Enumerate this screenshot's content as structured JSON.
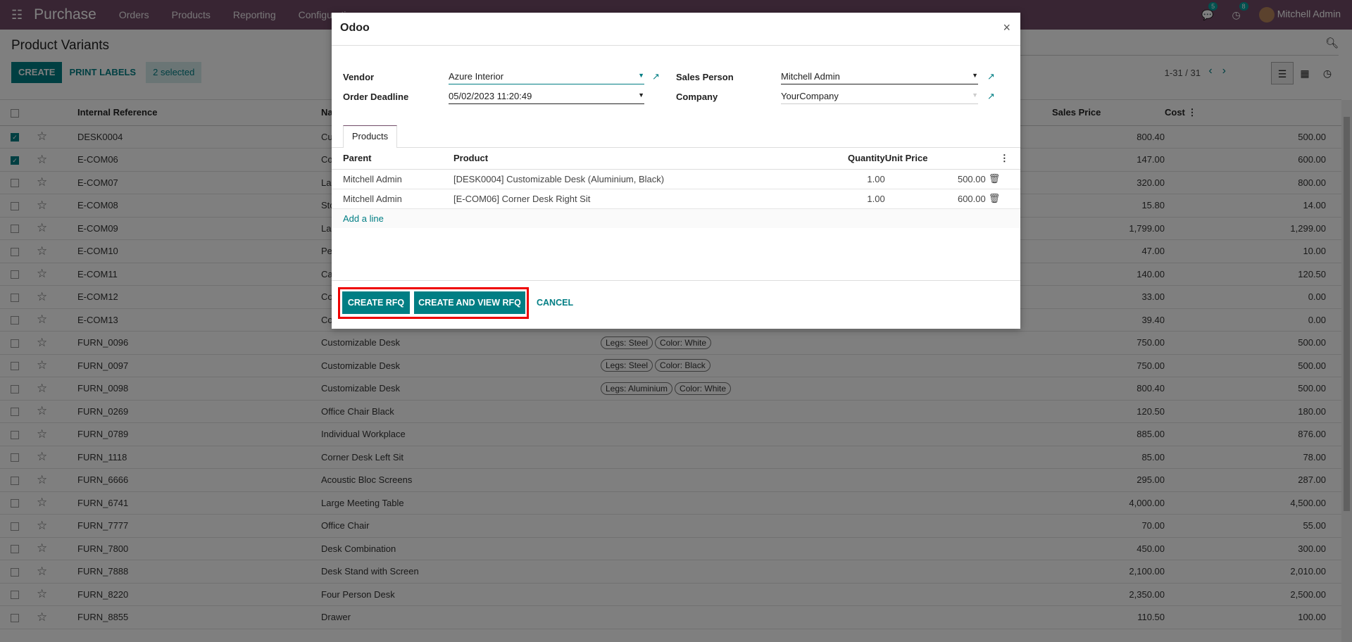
{
  "navbar": {
    "app": "Purchase",
    "menus": [
      "Orders",
      "Products",
      "Reporting",
      "Configuration"
    ],
    "messages_count": "5",
    "activities_count": "8",
    "user": "Mitchell Admin",
    "color": "#714B67"
  },
  "control": {
    "title": "Product Variants",
    "create": "CREATE",
    "print_labels": "PRINT LABELS",
    "selected": "2 selected",
    "pager": "1-31 / 31"
  },
  "list": {
    "columns": [
      "Internal Reference",
      "Na",
      "Sales Price",
      "Cost"
    ],
    "rows": [
      {
        "ref": "DESK0004",
        "name": "Cu",
        "tags": [],
        "price": "800.40",
        "cost": "500.00",
        "checked": true
      },
      {
        "ref": "E-COM06",
        "name": "Co",
        "tags": [],
        "price": "147.00",
        "cost": "600.00",
        "checked": true
      },
      {
        "ref": "E-COM07",
        "name": "La",
        "tags": [],
        "price": "320.00",
        "cost": "800.00"
      },
      {
        "ref": "E-COM08",
        "name": "Sto",
        "tags": [],
        "price": "15.80",
        "cost": "14.00"
      },
      {
        "ref": "E-COM09",
        "name": "La",
        "tags": [],
        "price": "1,799.00",
        "cost": "1,299.00"
      },
      {
        "ref": "E-COM10",
        "name": "Pe",
        "tags": [],
        "price": "47.00",
        "cost": "10.00"
      },
      {
        "ref": "E-COM11",
        "name": "Ca",
        "tags": [],
        "price": "140.00",
        "cost": "120.50"
      },
      {
        "ref": "E-COM12",
        "name": "Co",
        "tags": [],
        "price": "33.00",
        "cost": "0.00"
      },
      {
        "ref": "E-COM13",
        "name": "Co",
        "tags": [],
        "price": "39.40",
        "cost": "0.00"
      },
      {
        "ref": "FURN_0096",
        "name": "Customizable Desk",
        "tags": [
          "Legs: Steel",
          "Color: White"
        ],
        "price": "750.00",
        "cost": "500.00"
      },
      {
        "ref": "FURN_0097",
        "name": "Customizable Desk",
        "tags": [
          "Legs: Steel",
          "Color: Black"
        ],
        "price": "750.00",
        "cost": "500.00"
      },
      {
        "ref": "FURN_0098",
        "name": "Customizable Desk",
        "tags": [
          "Legs: Aluminium",
          "Color: White"
        ],
        "price": "800.40",
        "cost": "500.00"
      },
      {
        "ref": "FURN_0269",
        "name": "Office Chair Black",
        "tags": [],
        "price": "120.50",
        "cost": "180.00"
      },
      {
        "ref": "FURN_0789",
        "name": "Individual Workplace",
        "tags": [],
        "price": "885.00",
        "cost": "876.00"
      },
      {
        "ref": "FURN_1118",
        "name": "Corner Desk Left Sit",
        "tags": [],
        "price": "85.00",
        "cost": "78.00"
      },
      {
        "ref": "FURN_6666",
        "name": "Acoustic Bloc Screens",
        "tags": [],
        "price": "295.00",
        "cost": "287.00"
      },
      {
        "ref": "FURN_6741",
        "name": "Large Meeting Table",
        "tags": [],
        "price": "4,000.00",
        "cost": "4,500.00"
      },
      {
        "ref": "FURN_7777",
        "name": "Office Chair",
        "tags": [],
        "price": "70.00",
        "cost": "55.00"
      },
      {
        "ref": "FURN_7800",
        "name": "Desk Combination",
        "tags": [],
        "price": "450.00",
        "cost": "300.00"
      },
      {
        "ref": "FURN_7888",
        "name": "Desk Stand with Screen",
        "tags": [],
        "price": "2,100.00",
        "cost": "2,010.00"
      },
      {
        "ref": "FURN_8220",
        "name": "Four Person Desk",
        "tags": [],
        "price": "2,350.00",
        "cost": "2,500.00"
      },
      {
        "ref": "FURN_8855",
        "name": "Drawer",
        "tags": [],
        "price": "110.50",
        "cost": "100.00"
      }
    ]
  },
  "modal": {
    "title": "Odoo",
    "vendor_label": "Vendor",
    "vendor": "Azure Interior",
    "deadline_label": "Order Deadline",
    "deadline": "05/02/2023 11:20:49",
    "salesperson_label": "Sales Person",
    "salesperson": "Mitchell Admin",
    "company_label": "Company",
    "company": "YourCompany",
    "tab": "Products",
    "columns": [
      "Parent",
      "Product",
      "Quantity",
      "Unit Price"
    ],
    "lines": [
      {
        "parent": "Mitchell Admin",
        "product": "[DESK0004] Customizable Desk (Aluminium, Black)",
        "qty": "1.00",
        "price": "500.00"
      },
      {
        "parent": "Mitchell Admin",
        "product": "[E-COM06] Corner Desk Right Sit",
        "qty": "1.00",
        "price": "600.00"
      }
    ],
    "add_line": "Add a line",
    "create_rfq": "CREATE RFQ",
    "create_view_rfq": "CREATE AND VIEW RFQ",
    "cancel": "CANCEL",
    "accent": "#017e84",
    "highlight": "#e00000"
  }
}
